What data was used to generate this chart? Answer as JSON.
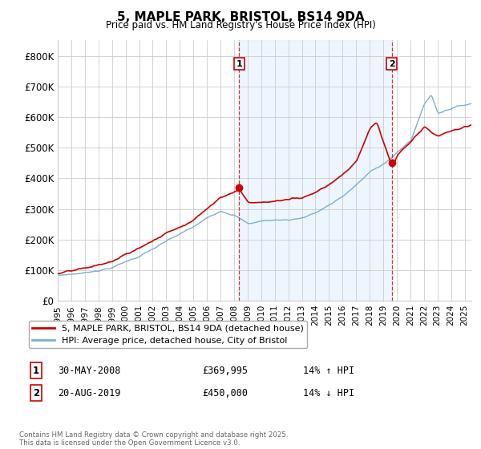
{
  "title": "5, MAPLE PARK, BRISTOL, BS14 9DA",
  "subtitle": "Price paid vs. HM Land Registry's House Price Index (HPI)",
  "ylabel_ticks": [
    "£0",
    "£100K",
    "£200K",
    "£300K",
    "£400K",
    "£500K",
    "£600K",
    "£700K",
    "£800K"
  ],
  "ytick_values": [
    0,
    100000,
    200000,
    300000,
    400000,
    500000,
    600000,
    700000,
    800000
  ],
  "ylim": [
    0,
    850000
  ],
  "legend_line1": "5, MAPLE PARK, BRISTOL, BS14 9DA (detached house)",
  "legend_line2": "HPI: Average price, detached house, City of Bristol",
  "annotation1_label": "1",
  "annotation1_date": "30-MAY-2008",
  "annotation1_price": "£369,995",
  "annotation1_hpi": "14% ↑ HPI",
  "annotation2_label": "2",
  "annotation2_date": "20-AUG-2019",
  "annotation2_price": "£450,000",
  "annotation2_hpi": "14% ↓ HPI",
  "footer": "Contains HM Land Registry data © Crown copyright and database right 2025.\nThis data is licensed under the Open Government Licence v3.0.",
  "red_color": "#cc0000",
  "blue_color": "#7bafd4",
  "blue_fill": "#ddeeff",
  "background_color": "#ffffff",
  "grid_color": "#cccccc",
  "marker1_x": 2008.38,
  "marker2_x": 2019.63,
  "marker1_y": 369995,
  "marker2_y": 450000,
  "xmin": 1995,
  "xmax": 2025.5
}
